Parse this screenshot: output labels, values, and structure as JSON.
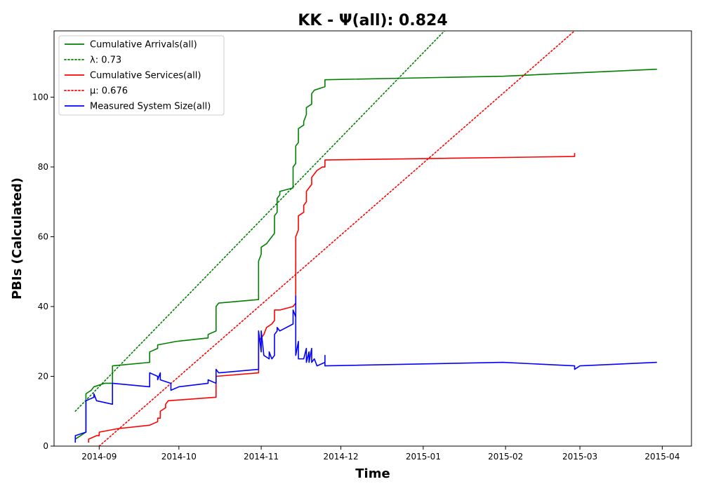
{
  "chart_data": {
    "type": "line",
    "title": "KK -  Ψ(all): 0.824",
    "xlabel": "Time",
    "ylabel": "PBIs (Calculated)",
    "xlim": [
      "2014-08-15",
      "2015-04-12"
    ],
    "ylim": [
      0,
      119
    ],
    "x_ticks": [
      "2014-09",
      "2014-10",
      "2014-11",
      "2014-12",
      "2015-01",
      "2015-02",
      "2015-03",
      "2015-04"
    ],
    "x_tick_dates": [
      "2014-09-01",
      "2014-10-01",
      "2014-11-01",
      "2014-12-01",
      "2015-01-01",
      "2015-02-01",
      "2015-03-01",
      "2015-04-01"
    ],
    "y_ticks": [
      0,
      20,
      40,
      60,
      80,
      100
    ],
    "grid": false,
    "legend_position": "top-left",
    "series": [
      {
        "name": "Cumulative Arrivals(all)",
        "color": "#008000",
        "dash": "solid",
        "points": [
          [
            "2014-08-23",
            2
          ],
          [
            "2014-08-27",
            4
          ],
          [
            "2014-08-27",
            15
          ],
          [
            "2014-08-29",
            16
          ],
          [
            "2014-08-30",
            17
          ],
          [
            "2014-09-03",
            18
          ],
          [
            "2014-09-06",
            18
          ],
          [
            "2014-09-06",
            23
          ],
          [
            "2014-09-20",
            24
          ],
          [
            "2014-09-20",
            27
          ],
          [
            "2014-09-23",
            28
          ],
          [
            "2014-09-23",
            29
          ],
          [
            "2014-09-30",
            30
          ],
          [
            "2014-10-12",
            31
          ],
          [
            "2014-10-12",
            32
          ],
          [
            "2014-10-15",
            33
          ],
          [
            "2014-10-15",
            40
          ],
          [
            "2014-10-16",
            41
          ],
          [
            "2014-10-31",
            42
          ],
          [
            "2014-10-31",
            53
          ],
          [
            "2014-11-01",
            55
          ],
          [
            "2014-11-01",
            57
          ],
          [
            "2014-11-03",
            58
          ],
          [
            "2014-11-04",
            59
          ],
          [
            "2014-11-06",
            61
          ],
          [
            "2014-11-06",
            66
          ],
          [
            "2014-11-07",
            67
          ],
          [
            "2014-11-07",
            71
          ],
          [
            "2014-11-08",
            72
          ],
          [
            "2014-11-08",
            73
          ],
          [
            "2014-11-13",
            74
          ],
          [
            "2014-11-13",
            80
          ],
          [
            "2014-11-14",
            81
          ],
          [
            "2014-11-14",
            86
          ],
          [
            "2014-11-15",
            87
          ],
          [
            "2014-11-15",
            91
          ],
          [
            "2014-11-17",
            92
          ],
          [
            "2014-11-17",
            93
          ],
          [
            "2014-11-18",
            95
          ],
          [
            "2014-11-18",
            97
          ],
          [
            "2014-11-20",
            98
          ],
          [
            "2014-11-20",
            101
          ],
          [
            "2014-11-21",
            102
          ],
          [
            "2014-11-25",
            103
          ],
          [
            "2014-11-25",
            105
          ],
          [
            "2015-01-31",
            106
          ],
          [
            "2015-03-30",
            108
          ]
        ]
      },
      {
        "name": "λ: 0.73",
        "color": "#008000",
        "dash": "dotted",
        "points": [
          [
            "2014-08-23",
            10
          ],
          [
            "2015-01-09",
            119
          ]
        ]
      },
      {
        "name": "Cumulative Services(all)",
        "color": "#ff0000",
        "dash": "solid",
        "points": [
          [
            "2014-08-28",
            1
          ],
          [
            "2014-08-28",
            2
          ],
          [
            "2014-08-31",
            3
          ],
          [
            "2014-09-01",
            3
          ],
          [
            "2014-09-01",
            4
          ],
          [
            "2014-09-08",
            5
          ],
          [
            "2014-09-20",
            6
          ],
          [
            "2014-09-23",
            7
          ],
          [
            "2014-09-23",
            8
          ],
          [
            "2014-09-24",
            8
          ],
          [
            "2014-09-24",
            10
          ],
          [
            "2014-09-26",
            11
          ],
          [
            "2014-09-26",
            12
          ],
          [
            "2014-09-27",
            13
          ],
          [
            "2014-10-15",
            14
          ],
          [
            "2014-10-15",
            20
          ],
          [
            "2014-10-31",
            21
          ],
          [
            "2014-10-31",
            30
          ],
          [
            "2014-11-02",
            32
          ],
          [
            "2014-11-03",
            34
          ],
          [
            "2014-11-05",
            35
          ],
          [
            "2014-11-06",
            36
          ],
          [
            "2014-11-06",
            39
          ],
          [
            "2014-11-08",
            39
          ],
          [
            "2014-11-13",
            40
          ],
          [
            "2014-11-14",
            41
          ],
          [
            "2014-11-14",
            60
          ],
          [
            "2014-11-15",
            62
          ],
          [
            "2014-11-15",
            66
          ],
          [
            "2014-11-17",
            67
          ],
          [
            "2014-11-17",
            69
          ],
          [
            "2014-11-18",
            70
          ],
          [
            "2014-11-18",
            73
          ],
          [
            "2014-11-19",
            74
          ],
          [
            "2014-11-20",
            75
          ],
          [
            "2014-11-20",
            77
          ],
          [
            "2014-11-21",
            78
          ],
          [
            "2014-11-22",
            79
          ],
          [
            "2014-11-24",
            80
          ],
          [
            "2014-11-25",
            80
          ],
          [
            "2014-11-25",
            82
          ],
          [
            "2015-02-27",
            83
          ],
          [
            "2015-02-27",
            84
          ]
        ]
      },
      {
        "name": "μ: 0.676",
        "color": "#ff0000",
        "dash": "dotted",
        "points": [
          [
            "2014-09-01",
            0
          ],
          [
            "2015-02-27",
            119
          ]
        ]
      },
      {
        "name": "Measured System Size(all)",
        "color": "#0000ff",
        "dash": "solid",
        "points": [
          [
            "2014-08-23",
            1
          ],
          [
            "2014-08-23",
            3
          ],
          [
            "2014-08-27",
            4
          ],
          [
            "2014-08-27",
            13
          ],
          [
            "2014-08-30",
            14
          ],
          [
            "2014-08-30",
            15
          ],
          [
            "2014-08-31",
            13
          ],
          [
            "2014-09-06",
            12
          ],
          [
            "2014-09-06",
            18
          ],
          [
            "2014-09-20",
            17
          ],
          [
            "2014-09-20",
            21
          ],
          [
            "2014-09-23",
            20
          ],
          [
            "2014-09-23",
            19
          ],
          [
            "2014-09-24",
            21
          ],
          [
            "2014-09-24",
            19
          ],
          [
            "2014-09-28",
            18
          ],
          [
            "2014-09-28",
            16
          ],
          [
            "2014-10-01",
            17
          ],
          [
            "2014-10-12",
            18
          ],
          [
            "2014-10-12",
            19
          ],
          [
            "2014-10-15",
            18
          ],
          [
            "2014-10-15",
            22
          ],
          [
            "2014-10-16",
            21
          ],
          [
            "2014-10-31",
            22
          ],
          [
            "2014-10-31",
            33
          ],
          [
            "2014-11-01",
            27
          ],
          [
            "2014-11-01",
            33
          ],
          [
            "2014-11-02",
            26
          ],
          [
            "2014-11-04",
            25
          ],
          [
            "2014-11-04",
            27
          ],
          [
            "2014-11-05",
            25
          ],
          [
            "2014-11-06",
            26
          ],
          [
            "2014-11-06",
            32
          ],
          [
            "2014-11-07",
            33
          ],
          [
            "2014-11-07",
            34
          ],
          [
            "2014-11-08",
            33
          ],
          [
            "2014-11-13",
            35
          ],
          [
            "2014-11-13",
            39
          ],
          [
            "2014-11-14",
            37
          ],
          [
            "2014-11-14",
            43
          ],
          [
            "2014-11-14",
            26
          ],
          [
            "2014-11-15",
            30
          ],
          [
            "2014-11-15",
            25
          ],
          [
            "2014-11-17",
            25
          ],
          [
            "2014-11-18",
            28
          ],
          [
            "2014-11-18",
            24
          ],
          [
            "2014-11-19",
            27
          ],
          [
            "2014-11-19",
            24
          ],
          [
            "2014-11-20",
            28
          ],
          [
            "2014-11-20",
            24
          ],
          [
            "2014-11-21",
            25
          ],
          [
            "2014-11-22",
            23
          ],
          [
            "2014-11-25",
            24
          ],
          [
            "2014-11-25",
            26
          ],
          [
            "2014-11-25",
            23
          ],
          [
            "2015-01-31",
            24
          ],
          [
            "2015-02-27",
            23
          ],
          [
            "2015-02-27",
            22
          ],
          [
            "2015-03-01",
            23
          ],
          [
            "2015-03-30",
            24
          ]
        ]
      }
    ]
  }
}
